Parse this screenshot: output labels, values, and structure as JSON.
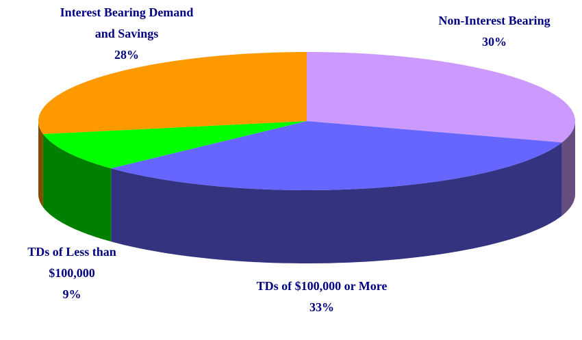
{
  "chart_data": {
    "type": "pie3d",
    "categories": [
      "Non-Interest Bearing",
      "TDs of $100,000 or More",
      "TDs of Less than $100,000",
      "Interest Bearing Demand and Savings"
    ],
    "values": [
      30,
      33,
      9,
      28
    ],
    "value_labels": [
      "30%",
      "33%",
      "9%",
      "28%"
    ],
    "colors": [
      "#cc99ff",
      "#6666ff",
      "#00ff00",
      "#ff9900"
    ]
  }
}
